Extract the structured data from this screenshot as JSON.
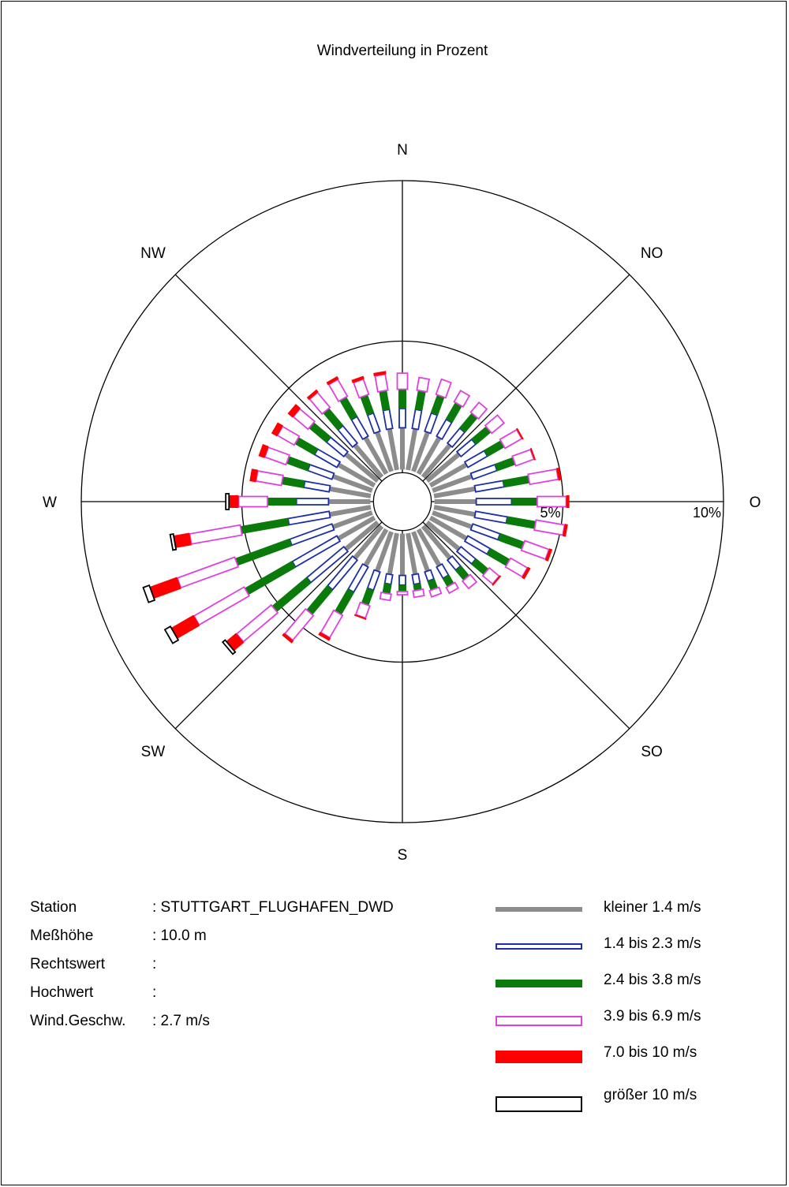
{
  "chart_data": {
    "type": "polar-bar",
    "title": "Windverteilung in Prozent",
    "direction_labels": [
      {
        "name": "N",
        "angle": 0
      },
      {
        "name": "NO",
        "angle": 45
      },
      {
        "name": "O",
        "angle": 90
      },
      {
        "name": "SO",
        "angle": 135
      },
      {
        "name": "S",
        "angle": 180
      },
      {
        "name": "SW",
        "angle": 225
      },
      {
        "name": "W",
        "angle": 270
      },
      {
        "name": "NW",
        "angle": 315
      }
    ],
    "rings": [
      {
        "value": 5,
        "label": "5%"
      },
      {
        "value": 10,
        "label": "10%"
      }
    ],
    "rmax": 10,
    "inner_radius_percent": 1.0,
    "classes": [
      {
        "name": "kleiner 1.4 m/s",
        "color": "#8c8c8c",
        "style": "solid"
      },
      {
        "name": "1.4 bis 2.3 m/s",
        "color": "#1c2fa8",
        "style": "outline"
      },
      {
        "name": "2.4 bis 3.8 m/s",
        "color": "#0a7a0a",
        "style": "solid"
      },
      {
        "name": "3.9 bis 6.9 m/s",
        "color": "#e040e0",
        "style": "outline"
      },
      {
        "name": "7.0 bis 10 m/s",
        "color": "#ff0000",
        "style": "solid"
      },
      {
        "name": "größer 10 m/s",
        "color": "#000000",
        "style": "outline"
      }
    ],
    "sectors": [
      {
        "direction": 0,
        "values": [
          1.3,
          0.6,
          0.6,
          0.5,
          0.0,
          0.0
        ]
      },
      {
        "direction": 10,
        "values": [
          1.3,
          0.6,
          0.6,
          0.4,
          0.0,
          0.0
        ]
      },
      {
        "direction": 20,
        "values": [
          1.3,
          0.6,
          0.6,
          0.5,
          0.0,
          0.0
        ]
      },
      {
        "direction": 30,
        "values": [
          1.3,
          0.6,
          0.6,
          0.4,
          0.0,
          0.0
        ]
      },
      {
        "direction": 40,
        "values": [
          1.3,
          0.6,
          0.6,
          0.4,
          0.0,
          0.0
        ]
      },
      {
        "direction": 50,
        "values": [
          1.3,
          0.6,
          0.6,
          0.5,
          0.0,
          0.0
        ]
      },
      {
        "direction": 60,
        "values": [
          1.3,
          0.7,
          0.6,
          0.6,
          0.05,
          0.0
        ]
      },
      {
        "direction": 70,
        "values": [
          1.3,
          0.8,
          0.6,
          0.6,
          0.05,
          0.0
        ]
      },
      {
        "direction": 80,
        "values": [
          1.3,
          0.9,
          0.8,
          0.9,
          0.1,
          0.0
        ]
      },
      {
        "direction": 90,
        "values": [
          1.3,
          1.1,
          0.8,
          0.9,
          0.1,
          0.0
        ]
      },
      {
        "direction": 100,
        "values": [
          1.3,
          1.0,
          0.9,
          0.9,
          0.1,
          0.0
        ]
      },
      {
        "direction": 110,
        "values": [
          1.3,
          0.9,
          0.8,
          0.8,
          0.1,
          0.0
        ]
      },
      {
        "direction": 120,
        "values": [
          1.3,
          0.8,
          0.7,
          0.6,
          0.1,
          0.0
        ]
      },
      {
        "direction": 130,
        "values": [
          1.3,
          0.6,
          0.5,
          0.4,
          0.05,
          0.0
        ]
      },
      {
        "direction": 140,
        "values": [
          1.3,
          0.4,
          0.4,
          0.3,
          0.0,
          0.0
        ]
      },
      {
        "direction": 150,
        "values": [
          1.3,
          0.4,
          0.3,
          0.2,
          0.0,
          0.0
        ]
      },
      {
        "direction": 160,
        "values": [
          1.3,
          0.3,
          0.3,
          0.2,
          0.0,
          0.0
        ]
      },
      {
        "direction": 170,
        "values": [
          1.3,
          0.3,
          0.2,
          0.2,
          0.0,
          0.0
        ]
      },
      {
        "direction": 180,
        "values": [
          1.3,
          0.3,
          0.2,
          0.1,
          0.0,
          0.0
        ]
      },
      {
        "direction": 190,
        "values": [
          1.3,
          0.3,
          0.3,
          0.2,
          0.0,
          0.0
        ]
      },
      {
        "direction": 200,
        "values": [
          1.3,
          0.6,
          0.5,
          0.4,
          0.05,
          0.0
        ]
      },
      {
        "direction": 210,
        "values": [
          1.3,
          0.9,
          0.8,
          0.8,
          0.1,
          0.0
        ]
      },
      {
        "direction": 220,
        "values": [
          1.3,
          1.2,
          1.0,
          1.0,
          0.1,
          0.0
        ]
      },
      {
        "direction": 230,
        "values": [
          1.3,
          1.5,
          1.4,
          1.4,
          0.4,
          0.1
        ]
      },
      {
        "direction": 240,
        "values": [
          1.3,
          1.6,
          1.7,
          1.8,
          0.8,
          0.2
        ]
      },
      {
        "direction": 250,
        "values": [
          1.3,
          1.4,
          1.8,
          1.9,
          0.9,
          0.2
        ]
      },
      {
        "direction": 260,
        "values": [
          1.3,
          1.3,
          1.5,
          1.6,
          0.5,
          0.1
        ]
      },
      {
        "direction": 270,
        "values": [
          1.3,
          1.0,
          0.9,
          0.9,
          0.3,
          0.1
        ]
      },
      {
        "direction": 280,
        "values": [
          1.3,
          0.8,
          0.7,
          0.8,
          0.2,
          0.0
        ]
      },
      {
        "direction": 290,
        "values": [
          1.3,
          0.8,
          0.7,
          0.7,
          0.2,
          0.0
        ]
      },
      {
        "direction": 300,
        "values": [
          1.3,
          0.8,
          0.7,
          0.6,
          0.2,
          0.0
        ]
      },
      {
        "direction": 310,
        "values": [
          1.3,
          0.7,
          0.7,
          0.6,
          0.2,
          0.0
        ]
      },
      {
        "direction": 320,
        "values": [
          1.3,
          0.7,
          0.7,
          0.6,
          0.1,
          0.0
        ]
      },
      {
        "direction": 330,
        "values": [
          1.3,
          0.7,
          0.7,
          0.6,
          0.1,
          0.0
        ]
      },
      {
        "direction": 340,
        "values": [
          1.3,
          0.6,
          0.6,
          0.5,
          0.1,
          0.0
        ]
      },
      {
        "direction": 350,
        "values": [
          1.3,
          0.6,
          0.6,
          0.5,
          0.1,
          0.0
        ]
      }
    ]
  },
  "station_info": [
    {
      "key": "Station",
      "value": ": STUTTGART_FLUGHAFEN_DWD"
    },
    {
      "key": "Meßhöhe",
      "value": ": 10.0 m"
    },
    {
      "key": "Rechtswert",
      "value": ":"
    },
    {
      "key": "Hochwert",
      "value": ":"
    },
    {
      "key": "Wind.Geschw.",
      "value": ": 2.7 m/s"
    }
  ]
}
